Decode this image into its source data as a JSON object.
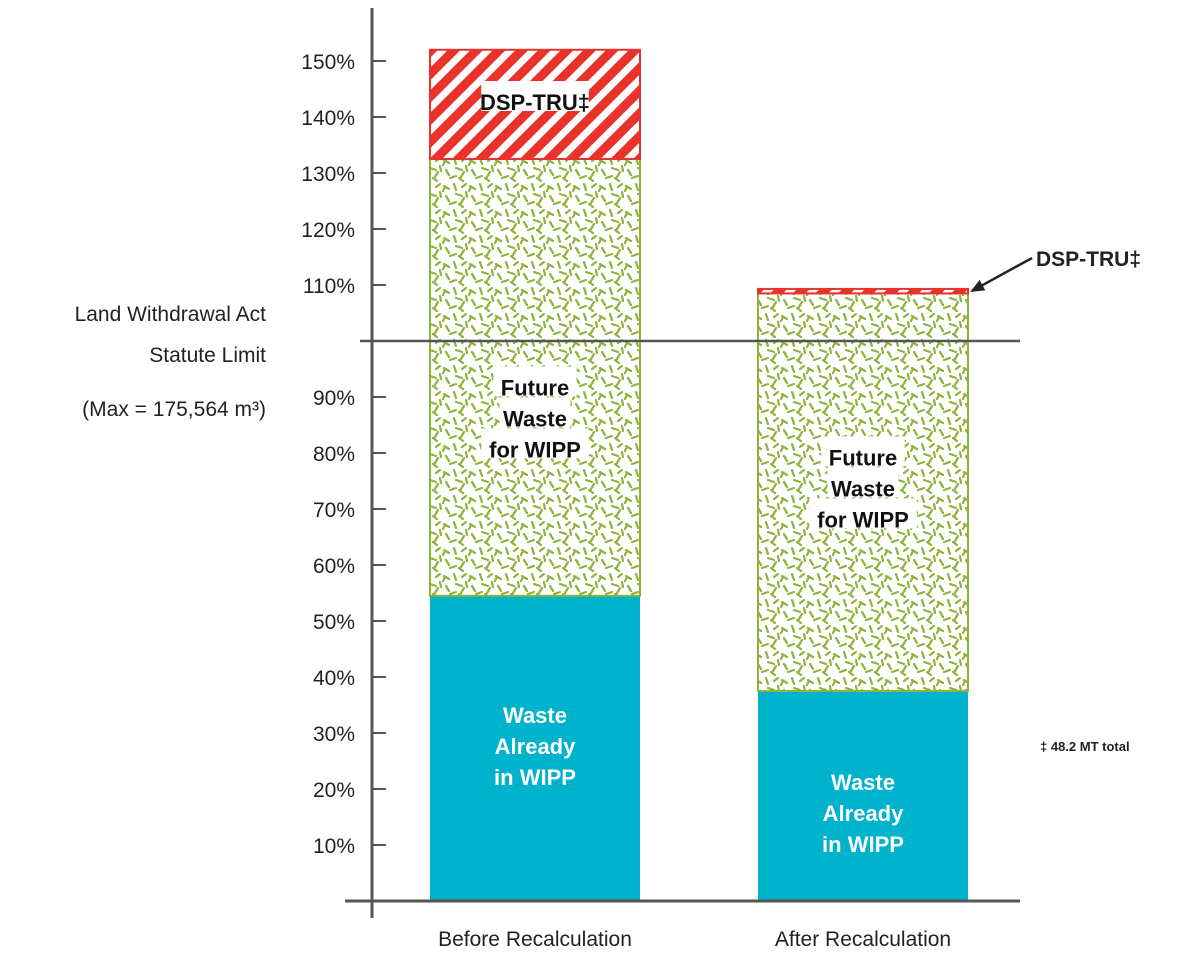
{
  "chart_data": {
    "type": "bar",
    "stacked": true,
    "categories": [
      "Before Recalculation",
      "After Recalculation"
    ],
    "series": [
      {
        "name": "Waste Already in WIPP",
        "values": [
          54.5,
          37.5
        ],
        "color": "#00b3cc"
      },
      {
        "name": "Future Waste for WIPP",
        "values": [
          78,
          71
        ],
        "color": "#8db33a"
      },
      {
        "name": "DSP-TRU‡",
        "values": [
          19.5,
          0.8
        ],
        "color": "#e8322b"
      }
    ],
    "segment_labels": [
      [
        "Waste Already in WIPP",
        "Future Waste for WIPP",
        "DSP-TRU‡"
      ],
      [
        "Waste Already in WIPP",
        "Future Waste for WIPP",
        ""
      ]
    ],
    "yticks": [
      "10%",
      "20%",
      "30%",
      "40%",
      "50%",
      "60%",
      "70%",
      "80%",
      "90%",
      "110%",
      "120%",
      "130%",
      "140%",
      "150%"
    ],
    "ylim": [
      0,
      150
    ],
    "reference_line": {
      "value": 100,
      "label_lines": [
        "Land Withdrawal Act",
        "Statute Limit",
        "(Max = 175,564 m³)"
      ]
    },
    "callout": "DSP-TRU‡",
    "footnote": "‡ 48.2 MT total",
    "grid": false
  }
}
